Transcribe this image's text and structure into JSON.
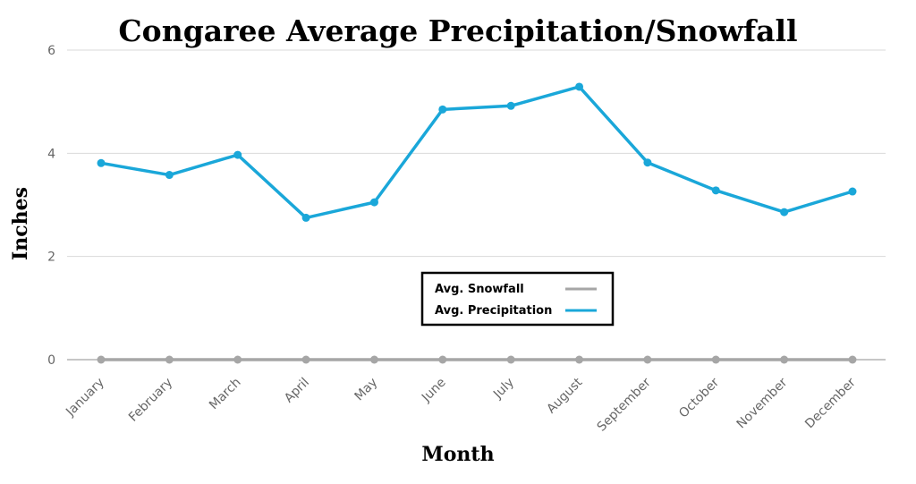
{
  "chart_data": {
    "type": "line",
    "title": "Congaree Average Precipitation/Snowfall",
    "xlabel": "Month",
    "ylabel": "Inches",
    "ylim": [
      0,
      6
    ],
    "yticks": [
      0,
      2,
      4,
      6
    ],
    "grid": true,
    "legend_position": "center",
    "categories": [
      "January",
      "February",
      "March",
      "April",
      "May",
      "June",
      "July",
      "August",
      "September",
      "October",
      "November",
      "December"
    ],
    "series": [
      {
        "name": "Avg. Snowfall",
        "color": "#a6a6a6",
        "values": [
          0,
          0,
          0,
          0,
          0,
          0,
          0,
          0,
          0,
          0,
          0,
          0
        ]
      },
      {
        "name": "Avg. Precipitation",
        "color": "#1aa7d9",
        "values": [
          3.81,
          3.58,
          3.97,
          2.75,
          3.05,
          4.85,
          4.92,
          5.29,
          3.82,
          3.28,
          2.86,
          3.26
        ]
      }
    ]
  }
}
